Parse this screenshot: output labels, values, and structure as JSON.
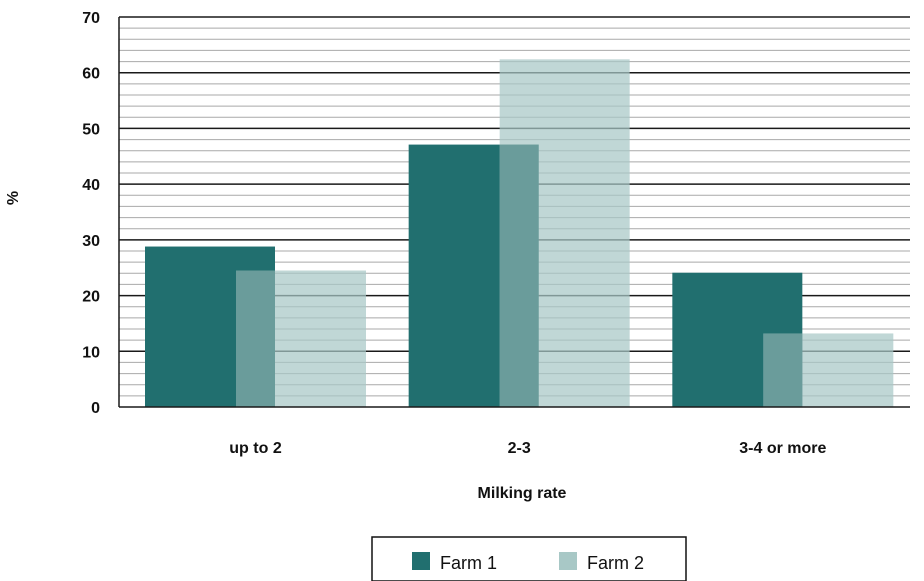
{
  "chart_data": {
    "type": "bar",
    "categories": [
      "up to 2",
      "2-3",
      "3-4 or more"
    ],
    "series": [
      {
        "name": "Farm 1",
        "values": [
          28.8,
          47.1,
          24.1
        ],
        "color": "#216f6f"
      },
      {
        "name": "Farm 2",
        "values": [
          24.5,
          62.4,
          13.2
        ],
        "color": "#a8c8c6"
      }
    ],
    "overlap_color": "#6a9c9b",
    "xlabel": "Milking rate",
    "ylabel": "%",
    "ylim": [
      0,
      70
    ],
    "yticks": [
      0,
      10,
      20,
      30,
      40,
      50,
      60,
      70
    ],
    "grid": true,
    "legend": "bottom-center"
  }
}
